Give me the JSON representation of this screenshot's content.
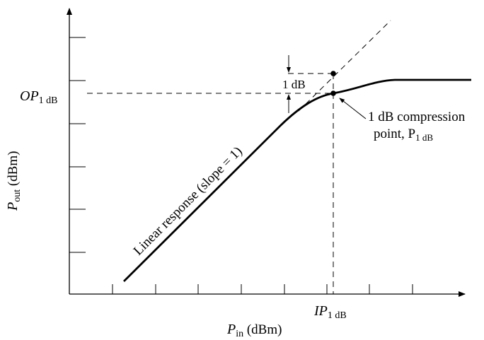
{
  "diagram": {
    "x_axis_label_main": "P",
    "x_axis_label_sub": "in",
    "x_axis_label_unit": " (dBm)",
    "y_axis_label_main": "P",
    "y_axis_label_sub": "out",
    "y_axis_label_unit": " (dBm)",
    "op_label_main": "OP",
    "op_label_sub": "1 dB",
    "ip_label_main": "IP",
    "ip_label_sub": "1 dB",
    "gap_label": "1 dB",
    "compression_line1": "1 dB compression",
    "compression_line2_main": "point, P",
    "compression_line2_sub": "1 dB",
    "linear_label": "Linear response (slope = 1)",
    "colors": {
      "ink": "#000000",
      "background": "#ffffff"
    }
  }
}
